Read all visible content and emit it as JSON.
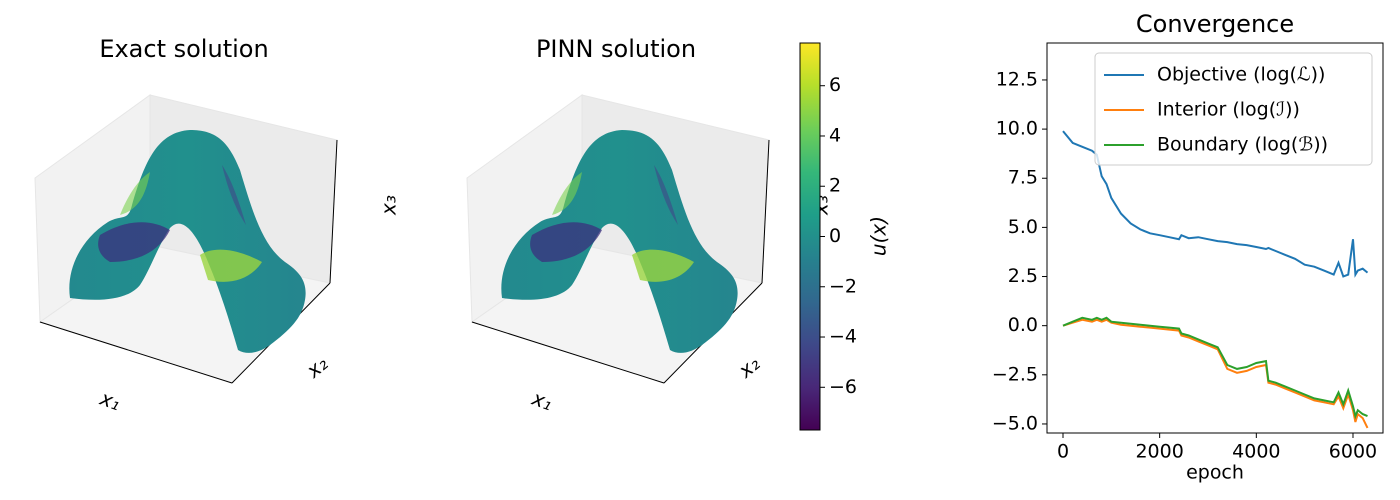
{
  "chart_data": [
    {
      "type": "surface3d",
      "title": "Exact solution",
      "xlabel": "x₁",
      "ylabel": "x₂",
      "zlabel": "x₃"
    },
    {
      "type": "surface3d",
      "title": "PINN solution",
      "xlabel": "x₁",
      "ylabel": "x₂",
      "zlabel": "x₃"
    },
    {
      "type": "colorbar",
      "label": "u(x)",
      "colormap": [
        "#440154",
        "#482878",
        "#3e4989",
        "#31688e",
        "#26828e",
        "#1f9e89",
        "#35b779",
        "#6ece58",
        "#b5de2b",
        "#fde725"
      ],
      "ylim": [
        -7.7,
        7.7
      ],
      "yticks": [
        {
          "value": -6,
          "label": "−6"
        },
        {
          "value": -4,
          "label": "−4"
        },
        {
          "value": -2,
          "label": "−2"
        },
        0,
        2,
        4,
        6
      ]
    },
    {
      "type": "line",
      "title": "Convergence",
      "xlabel": "epoch",
      "legend": "upper right",
      "x": [
        0,
        200,
        400,
        600,
        700,
        800,
        900,
        1000,
        1200,
        1400,
        1600,
        1800,
        2000,
        2200,
        2400,
        2450,
        2600,
        2800,
        3000,
        3200,
        3400,
        3600,
        3800,
        4000,
        4200,
        4250,
        4400,
        4600,
        4800,
        5000,
        5200,
        5400,
        5600,
        5700,
        5800,
        5900,
        6000,
        6050,
        6100,
        6200,
        6300
      ],
      "xlim": [
        -331,
        6621
      ],
      "xticks": [
        0,
        2000,
        4000,
        6000
      ],
      "ylim": [
        -5.46,
        14.38
      ],
      "yticks": [
        {
          "value": -5,
          "label": "−5.0"
        },
        {
          "value": -2.5,
          "label": "−2.5"
        },
        {
          "value": 0,
          "label": "0.0"
        },
        2.5,
        {
          "value": 5,
          "label": "5.0"
        },
        7.5,
        {
          "value": 10,
          "label": "10.0"
        },
        12.5
      ],
      "series": [
        {
          "name": "Objective (log(ℒ))",
          "color": "#1f77b4",
          "values": [
            9.9,
            9.3,
            9.1,
            8.9,
            8.7,
            7.6,
            7.2,
            6.5,
            5.7,
            5.2,
            4.9,
            4.7,
            4.6,
            4.5,
            4.4,
            4.6,
            4.45,
            4.5,
            4.4,
            4.3,
            4.25,
            4.15,
            4.1,
            4.0,
            3.9,
            3.95,
            3.8,
            3.6,
            3.4,
            3.1,
            3.0,
            2.8,
            2.6,
            3.2,
            2.5,
            2.6,
            4.4,
            2.6,
            2.8,
            2.9,
            2.7
          ]
        },
        {
          "name": "Interior (log(ℐ))",
          "color": "#ff7f0e",
          "values": [
            0.0,
            0.15,
            0.3,
            0.2,
            0.3,
            0.2,
            0.3,
            0.15,
            0.05,
            0.0,
            -0.05,
            -0.1,
            -0.15,
            -0.2,
            -0.25,
            -0.5,
            -0.6,
            -0.8,
            -1.0,
            -1.2,
            -2.2,
            -2.4,
            -2.3,
            -2.1,
            -2.0,
            -2.9,
            -3.0,
            -3.2,
            -3.4,
            -3.6,
            -3.8,
            -3.9,
            -4.0,
            -3.6,
            -4.2,
            -3.5,
            -4.3,
            -4.9,
            -4.5,
            -4.7,
            -5.2
          ]
        },
        {
          "name": "Boundary (log(ℬ))",
          "color": "#2ca02c",
          "values": [
            0.0,
            0.2,
            0.4,
            0.3,
            0.4,
            0.3,
            0.4,
            0.2,
            0.15,
            0.1,
            0.05,
            0.0,
            -0.05,
            -0.1,
            -0.15,
            -0.4,
            -0.5,
            -0.7,
            -0.9,
            -1.1,
            -2.0,
            -2.2,
            -2.1,
            -1.9,
            -1.8,
            -2.8,
            -2.9,
            -3.1,
            -3.3,
            -3.5,
            -3.7,
            -3.8,
            -3.9,
            -3.4,
            -4.0,
            -3.3,
            -4.1,
            -4.6,
            -4.3,
            -4.5,
            -4.6
          ]
        }
      ]
    }
  ]
}
